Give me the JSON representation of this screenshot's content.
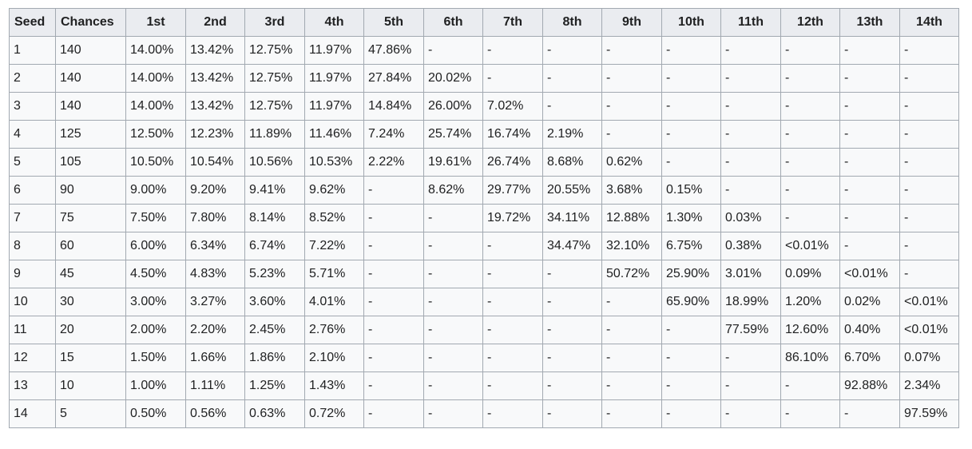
{
  "table": {
    "headers": [
      "Seed",
      "Chances",
      "1st",
      "2nd",
      "3rd",
      "4th",
      "5th",
      "6th",
      "7th",
      "8th",
      "9th",
      "10th",
      "11th",
      "12th",
      "13th",
      "14th"
    ],
    "rows": [
      [
        "1",
        "140",
        "14.00%",
        "13.42%",
        "12.75%",
        "11.97%",
        "47.86%",
        "-",
        "-",
        "-",
        "-",
        "-",
        "-",
        "-",
        "-",
        "-"
      ],
      [
        "2",
        "140",
        "14.00%",
        "13.42%",
        "12.75%",
        "11.97%",
        "27.84%",
        "20.02%",
        "-",
        "-",
        "-",
        "-",
        "-",
        "-",
        "-",
        "-"
      ],
      [
        "3",
        "140",
        "14.00%",
        "13.42%",
        "12.75%",
        "11.97%",
        "14.84%",
        "26.00%",
        "7.02%",
        "-",
        "-",
        "-",
        "-",
        "-",
        "-",
        "-"
      ],
      [
        "4",
        "125",
        "12.50%",
        "12.23%",
        "11.89%",
        "11.46%",
        "7.24%",
        "25.74%",
        "16.74%",
        "2.19%",
        "-",
        "-",
        "-",
        "-",
        "-",
        "-"
      ],
      [
        "5",
        "105",
        "10.50%",
        "10.54%",
        "10.56%",
        "10.53%",
        "2.22%",
        "19.61%",
        "26.74%",
        "8.68%",
        "0.62%",
        "-",
        "-",
        "-",
        "-",
        "-"
      ],
      [
        "6",
        "90",
        "9.00%",
        "9.20%",
        "9.41%",
        "9.62%",
        "-",
        "8.62%",
        "29.77%",
        "20.55%",
        "3.68%",
        "0.15%",
        "-",
        "-",
        "-",
        "-"
      ],
      [
        "7",
        "75",
        "7.50%",
        "7.80%",
        "8.14%",
        "8.52%",
        "-",
        "-",
        "19.72%",
        "34.11%",
        "12.88%",
        "1.30%",
        "0.03%",
        "-",
        "-",
        "-"
      ],
      [
        "8",
        "60",
        "6.00%",
        "6.34%",
        "6.74%",
        "7.22%",
        "-",
        "-",
        "-",
        "34.47%",
        "32.10%",
        "6.75%",
        "0.38%",
        "<0.01%",
        "-",
        "-"
      ],
      [
        "9",
        "45",
        "4.50%",
        "4.83%",
        "5.23%",
        "5.71%",
        "-",
        "-",
        "-",
        "-",
        "50.72%",
        "25.90%",
        "3.01%",
        "0.09%",
        "<0.01%",
        "-"
      ],
      [
        "10",
        "30",
        "3.00%",
        "3.27%",
        "3.60%",
        "4.01%",
        "-",
        "-",
        "-",
        "-",
        "-",
        "65.90%",
        "18.99%",
        "1.20%",
        "0.02%",
        "<0.01%"
      ],
      [
        "11",
        "20",
        "2.00%",
        "2.20%",
        "2.45%",
        "2.76%",
        "-",
        "-",
        "-",
        "-",
        "-",
        "-",
        "77.59%",
        "12.60%",
        "0.40%",
        "<0.01%"
      ],
      [
        "12",
        "15",
        "1.50%",
        "1.66%",
        "1.86%",
        "2.10%",
        "-",
        "-",
        "-",
        "-",
        "-",
        "-",
        "-",
        "86.10%",
        "6.70%",
        "0.07%"
      ],
      [
        "13",
        "10",
        "1.00%",
        "1.11%",
        "1.25%",
        "1.43%",
        "-",
        "-",
        "-",
        "-",
        "-",
        "-",
        "-",
        "-",
        "92.88%",
        "2.34%"
      ],
      [
        "14",
        "5",
        "0.50%",
        "0.56%",
        "0.63%",
        "0.72%",
        "-",
        "-",
        "-",
        "-",
        "-",
        "-",
        "-",
        "-",
        "-",
        "97.59%"
      ]
    ]
  }
}
